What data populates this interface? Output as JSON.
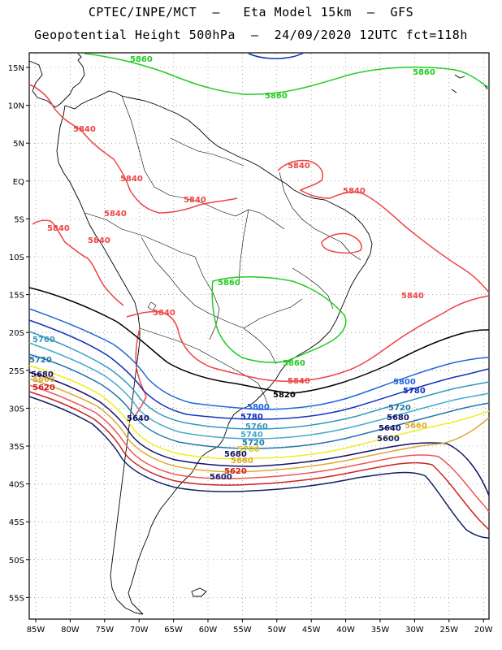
{
  "header": {
    "line1": "CPTEC/INPE/MCT  –   Eta Model 15km  –  GFS",
    "line2": "Geopotential Height 500hPa  –  24/09/2020 12UTC fct=118h"
  },
  "axes": {
    "lat_labels": [
      "15N",
      "10N",
      "5N",
      "EQ",
      "5S",
      "10S",
      "15S",
      "20S",
      "25S",
      "30S",
      "35S",
      "40S",
      "45S",
      "50S",
      "55S"
    ],
    "lon_labels": [
      "85W",
      "80W",
      "75W",
      "70W",
      "65W",
      "60W",
      "55W",
      "50W",
      "45W",
      "40W",
      "35W",
      "30W",
      "25W",
      "20W"
    ]
  },
  "colors": {
    "c5860": "#22cc22",
    "c5840": "#ee4444",
    "c5820": "#000000",
    "c5800": "#2266dd",
    "c5780": "#1133bb",
    "c5760": "#3399bb",
    "c5740": "#44aacc",
    "c5720": "#2277aa",
    "c5700": "#eeee22",
    "c5680": "#111166",
    "c5660": "#ddaa33",
    "c5640": "#ee5555",
    "c5620": "#cc2222",
    "c5600": "#112266"
  },
  "contour_labels": {
    "l5860_a": "5860",
    "l5860_b": "5860",
    "l5860_c": "5860",
    "l5860_d": "5860",
    "l5860_e": "5860",
    "l5840_a": "5840",
    "l5840_b": "5840",
    "l5840_c": "5840",
    "l5840_d": "5840",
    "l5840_e": "5840",
    "l5840_f": "5840",
    "l5840_g": "5840",
    "l5840_h": "5840",
    "l5840_i": "5840",
    "l5840_j": "5840",
    "l5840_k": "5840",
    "l5820": "5820",
    "l5800_a": "5800",
    "l5800_b": "5800",
    "l5780_a": "5780",
    "l5780_b": "5780",
    "l5760_a": "5760",
    "l5760_b": "5760",
    "l5740": "5740",
    "l5720_a": "5720",
    "l5720_b": "5720",
    "l5720_c": "5720",
    "l5700": "5700",
    "l5680_a": "5680",
    "l5680_b": "5680",
    "l5680_c": "5680",
    "l5660_a": "5660",
    "l5660_b": "5660",
    "l5660_c": "5660",
    "l5640_a": "5640",
    "l5640_b": "5640",
    "l5620_a": "5620",
    "l5620_b": "5620",
    "l5600_a": "5600",
    "l5600_b": "5600"
  }
}
